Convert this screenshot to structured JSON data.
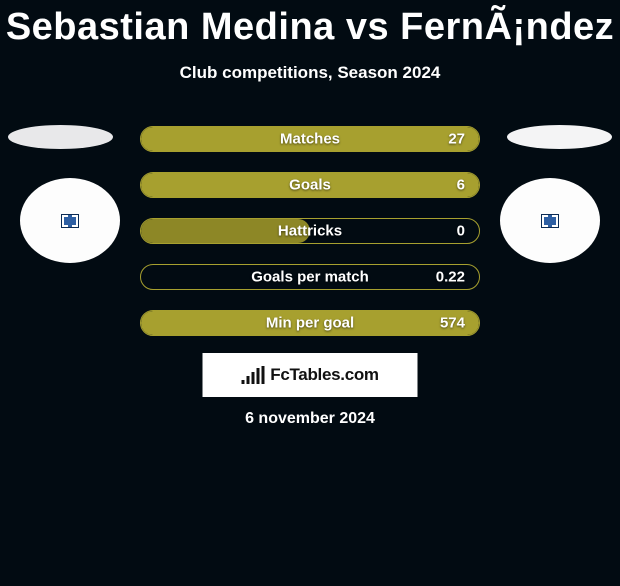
{
  "title": "Sebastian Medina vs FernÃ¡ndez",
  "subtitle": "Club competitions, Season 2024",
  "colors": {
    "primary": "#a7a02f",
    "dark_fill": "#8d8726",
    "primary_border": "#a7a02f",
    "transparent": "rgba(0,0,0,0)"
  },
  "stats": [
    {
      "label": "Matches",
      "value": "27",
      "fill_pct": 100,
      "fill_color": "#a7a02f",
      "border_color": "#a7a02f"
    },
    {
      "label": "Goals",
      "value": "6",
      "fill_pct": 100,
      "fill_color": "#a7a02f",
      "border_color": "#a7a02f"
    },
    {
      "label": "Hattricks",
      "value": "0",
      "fill_pct": 50,
      "fill_color": "#8d8726",
      "border_color": "#a7a02f"
    },
    {
      "label": "Goals per match",
      "value": "0.22",
      "fill_pct": 0,
      "fill_color": "rgba(0,0,0,0)",
      "border_color": "#a7a02f"
    },
    {
      "label": "Min per goal",
      "value": "574",
      "fill_pct": 100,
      "fill_color": "#a7a02f",
      "border_color": "#a7a02f"
    }
  ],
  "logo_text": "FcTables.com",
  "date": "6 november 2024"
}
